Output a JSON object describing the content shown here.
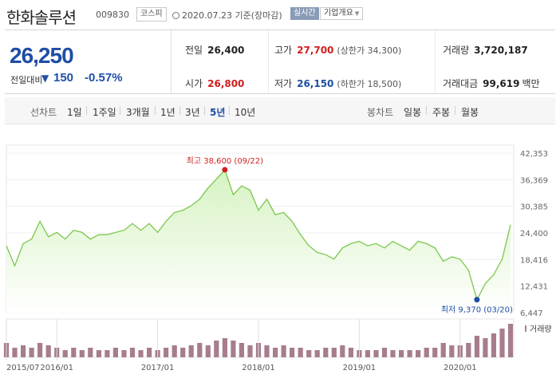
{
  "header": {
    "stock_name": "한화솔루션",
    "stock_code": "009830",
    "market": "코스피",
    "date": "2020.07.23",
    "date_suffix": "기준(장마감)",
    "realtime_label": "실시간",
    "company_info_label": "기업개요"
  },
  "quote": {
    "price": "26,250",
    "change_label": "전일대비",
    "change_arrow": "▼",
    "change": "150",
    "change_pct": "-0.57%",
    "prev_close_label": "전일",
    "prev_close": "26,400",
    "high_label": "고가",
    "high": "27,700",
    "upper_limit": "(상한가 34,300)",
    "volume_label": "거래량",
    "volume": "3,720,187",
    "open_label": "시가",
    "open": "26,800",
    "low_label": "저가",
    "low": "26,150",
    "lower_limit": "(하한가 18,500)",
    "amount_label": "거래대금",
    "amount": "99,619",
    "amount_unit": "백만"
  },
  "tabs": {
    "line_chart_label": "선차트",
    "periods": [
      "1일",
      "1주일",
      "3개월",
      "1년",
      "3년",
      "5년",
      "10년"
    ],
    "active_period": "5년",
    "candle_chart_label": "봉차트",
    "candle_periods": [
      "일봉",
      "주봉",
      "월봉"
    ]
  },
  "colors": {
    "price_up": "#d21f1f",
    "price_down": "#1e4ea6",
    "line": "#7bc74d",
    "area_top": "#d6f2c2",
    "volume_bar": "#a77d8e"
  },
  "chart_data": {
    "type": "area",
    "ylim": [
      6447,
      42353
    ],
    "y_ticks": [
      "42,353",
      "36,369",
      "30,385",
      "24,400",
      "18,416",
      "12,431",
      "6,447"
    ],
    "x_ticks": [
      "2015/07",
      "2016/01",
      "2017/01",
      "2018/01",
      "2019/01",
      "2020/01"
    ],
    "volume_label": "거래량",
    "max_annotation": "최고 38,600 (09/22)",
    "min_annotation": "최저 9,370 (03/20)",
    "max_point": {
      "x": "2017/09/22",
      "y": 38600
    },
    "min_point": {
      "x": "2020/03/20",
      "y": 9370
    },
    "x": [
      "2015/07",
      "2015/08",
      "2015/09",
      "2015/10",
      "2015/11",
      "2015/12",
      "2016/01",
      "2016/02",
      "2016/03",
      "2016/04",
      "2016/05",
      "2016/06",
      "2016/07",
      "2016/08",
      "2016/09",
      "2016/10",
      "2016/11",
      "2016/12",
      "2017/01",
      "2017/02",
      "2017/03",
      "2017/04",
      "2017/05",
      "2017/06",
      "2017/07",
      "2017/08",
      "2017/09",
      "2017/10",
      "2017/11",
      "2017/12",
      "2018/01",
      "2018/02",
      "2018/03",
      "2018/04",
      "2018/05",
      "2018/06",
      "2018/07",
      "2018/08",
      "2018/09",
      "2018/10",
      "2018/11",
      "2018/12",
      "2019/01",
      "2019/02",
      "2019/03",
      "2019/04",
      "2019/05",
      "2019/06",
      "2019/07",
      "2019/08",
      "2019/09",
      "2019/10",
      "2019/11",
      "2019/12",
      "2020/01",
      "2020/02",
      "2020/03",
      "2020/04",
      "2020/05",
      "2020/06",
      "2020/07"
    ],
    "series": [
      {
        "values": [
          21500,
          17000,
          22000,
          23000,
          27000,
          23500,
          24500,
          23000,
          25000,
          24500,
          23000,
          24000,
          24000,
          24500,
          25000,
          26500,
          25000,
          26500,
          24500,
          27000,
          29000,
          29500,
          30500,
          32000,
          34500,
          36500,
          38600,
          33000,
          35000,
          34000,
          29500,
          32000,
          28500,
          29000,
          27000,
          24000,
          21500,
          20000,
          19500,
          18500,
          21000,
          22000,
          22500,
          21500,
          22000,
          21000,
          22500,
          21500,
          20500,
          22500,
          22000,
          21000,
          18000,
          19000,
          18500,
          16000,
          9370,
          13000,
          15000,
          18500,
          26250
        ]
      }
    ],
    "volume": [
      6,
      4,
      5,
      4,
      6,
      5,
      4,
      3,
      4,
      3,
      4,
      3,
      3,
      4,
      3,
      4,
      3,
      4,
      3,
      4,
      5,
      4,
      5,
      6,
      5,
      7,
      8,
      7,
      6,
      5,
      6,
      5,
      4,
      5,
      4,
      4,
      3,
      3,
      4,
      4,
      5,
      4,
      3,
      3,
      3,
      4,
      3,
      3,
      3,
      3,
      4,
      4,
      6,
      5,
      5,
      6,
      9,
      8,
      10,
      12,
      14
    ]
  }
}
